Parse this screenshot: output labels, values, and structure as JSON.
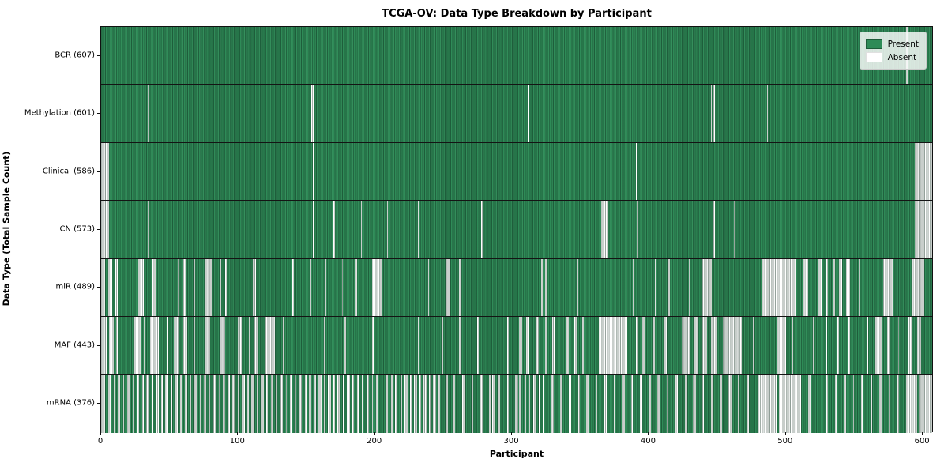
{
  "chart_data": {
    "type": "heatmap",
    "title": "TCGA-OV: Data Type Breakdown by Participant",
    "xlabel": "Participant",
    "ylabel": "Data Type (Total Sample Count)",
    "x_ticks": [
      0,
      100,
      200,
      300,
      400,
      500,
      600
    ],
    "n_participants": 608,
    "present_color": "#2e8b57",
    "absent_color": "#ffffff",
    "legend": {
      "present_label": "Present",
      "absent_label": "Absent"
    },
    "rows": [
      {
        "label": "BCR (607)",
        "data_type": "BCR",
        "count": 607,
        "absent_ranges": [
          [
            589,
            589
          ]
        ]
      },
      {
        "label": "Methylation (601)",
        "data_type": "Methylation",
        "count": 601,
        "absent_ranges": [
          [
            34,
            34
          ],
          [
            154,
            155
          ],
          [
            312,
            312
          ],
          [
            446,
            446
          ],
          [
            448,
            448
          ],
          [
            487,
            487
          ]
        ]
      },
      {
        "label": "Clinical (586)",
        "data_type": "Clinical",
        "count": 586,
        "absent_ranges": [
          [
            0,
            5
          ],
          [
            155,
            155
          ],
          [
            391,
            391
          ],
          [
            494,
            494
          ],
          [
            595,
            607
          ]
        ]
      },
      {
        "label": "CN (573)",
        "data_type": "CN",
        "count": 573,
        "absent_ranges": [
          [
            0,
            5
          ],
          [
            34,
            34
          ],
          [
            155,
            155
          ],
          [
            170,
            170
          ],
          [
            190,
            190
          ],
          [
            209,
            209
          ],
          [
            232,
            232
          ],
          [
            278,
            278
          ],
          [
            366,
            370
          ],
          [
            392,
            392
          ],
          [
            448,
            448
          ],
          [
            463,
            463
          ],
          [
            494,
            494
          ],
          [
            595,
            607
          ]
        ]
      },
      {
        "label": "miR (489)",
        "data_type": "miR",
        "count": 489,
        "absent_ranges": [
          [
            0,
            2
          ],
          [
            5,
            7
          ],
          [
            10,
            11
          ],
          [
            27,
            30
          ],
          [
            37,
            39
          ],
          [
            56,
            56
          ],
          [
            60,
            61
          ],
          [
            68,
            68
          ],
          [
            76,
            80
          ],
          [
            87,
            87
          ],
          [
            91,
            91
          ],
          [
            111,
            112
          ],
          [
            140,
            140
          ],
          [
            153,
            153
          ],
          [
            164,
            164
          ],
          [
            176,
            176
          ],
          [
            186,
            186
          ],
          [
            198,
            205
          ],
          [
            227,
            227
          ],
          [
            239,
            239
          ],
          [
            252,
            254
          ],
          [
            262,
            262
          ],
          [
            322,
            322
          ],
          [
            325,
            325
          ],
          [
            348,
            348
          ],
          [
            389,
            389
          ],
          [
            405,
            405
          ],
          [
            415,
            415
          ],
          [
            430,
            430
          ],
          [
            440,
            446
          ],
          [
            472,
            472
          ],
          [
            484,
            507
          ],
          [
            513,
            516
          ],
          [
            524,
            526
          ],
          [
            530,
            531
          ],
          [
            535,
            536
          ],
          [
            540,
            541
          ],
          [
            545,
            547
          ],
          [
            554,
            554
          ],
          [
            572,
            578
          ],
          [
            593,
            601
          ]
        ]
      },
      {
        "label": "MAF (443)",
        "data_type": "MAF",
        "count": 443,
        "absent_ranges": [
          [
            0,
            3
          ],
          [
            6,
            8
          ],
          [
            11,
            12
          ],
          [
            24,
            28
          ],
          [
            31,
            31
          ],
          [
            36,
            41
          ],
          [
            48,
            48
          ],
          [
            53,
            56
          ],
          [
            60,
            62
          ],
          [
            68,
            68
          ],
          [
            76,
            79
          ],
          [
            87,
            90
          ],
          [
            100,
            102
          ],
          [
            108,
            108
          ],
          [
            112,
            114
          ],
          [
            120,
            126
          ],
          [
            133,
            133
          ],
          [
            150,
            150
          ],
          [
            163,
            163
          ],
          [
            178,
            178
          ],
          [
            198,
            199
          ],
          [
            216,
            216
          ],
          [
            232,
            232
          ],
          [
            249,
            249
          ],
          [
            262,
            262
          ],
          [
            275,
            275
          ],
          [
            297,
            297
          ],
          [
            306,
            307
          ],
          [
            311,
            312
          ],
          [
            318,
            319
          ],
          [
            325,
            325
          ],
          [
            330,
            331
          ],
          [
            340,
            341
          ],
          [
            346,
            347
          ],
          [
            352,
            352
          ],
          [
            364,
            384
          ],
          [
            391,
            392
          ],
          [
            396,
            397
          ],
          [
            404,
            404
          ],
          [
            412,
            413
          ],
          [
            425,
            430
          ],
          [
            434,
            436
          ],
          [
            440,
            442
          ],
          [
            446,
            449
          ],
          [
            455,
            468
          ],
          [
            477,
            477
          ],
          [
            495,
            500
          ],
          [
            505,
            505
          ],
          [
            513,
            513
          ],
          [
            521,
            521
          ],
          [
            530,
            530
          ],
          [
            538,
            539
          ],
          [
            547,
            547
          ],
          [
            560,
            560
          ],
          [
            566,
            570
          ],
          [
            575,
            576
          ],
          [
            583,
            583
          ],
          [
            590,
            592
          ],
          [
            597,
            599
          ]
        ]
      },
      {
        "label": "mRNA (376)",
        "data_type": "mRNA",
        "count": 376,
        "absent_ranges": [
          [
            0,
            2
          ],
          [
            5,
            6
          ],
          [
            9,
            9
          ],
          [
            12,
            13
          ],
          [
            16,
            16
          ],
          [
            19,
            20
          ],
          [
            23,
            23
          ],
          [
            26,
            27
          ],
          [
            30,
            30
          ],
          [
            33,
            34
          ],
          [
            37,
            37
          ],
          [
            40,
            41
          ],
          [
            44,
            44
          ],
          [
            47,
            48
          ],
          [
            51,
            51
          ],
          [
            54,
            55
          ],
          [
            58,
            58
          ],
          [
            61,
            62
          ],
          [
            65,
            65
          ],
          [
            68,
            69
          ],
          [
            72,
            72
          ],
          [
            75,
            76
          ],
          [
            79,
            79
          ],
          [
            82,
            83
          ],
          [
            86,
            86
          ],
          [
            89,
            90
          ],
          [
            93,
            93
          ],
          [
            96,
            97
          ],
          [
            100,
            100
          ],
          [
            103,
            104
          ],
          [
            107,
            107
          ],
          [
            110,
            111
          ],
          [
            114,
            114
          ],
          [
            117,
            118
          ],
          [
            121,
            121
          ],
          [
            124,
            125
          ],
          [
            128,
            128
          ],
          [
            131,
            132
          ],
          [
            135,
            135
          ],
          [
            138,
            139
          ],
          [
            142,
            142
          ],
          [
            145,
            146
          ],
          [
            149,
            149
          ],
          [
            152,
            153
          ],
          [
            156,
            156
          ],
          [
            159,
            160
          ],
          [
            163,
            163
          ],
          [
            166,
            167
          ],
          [
            170,
            170
          ],
          [
            173,
            174
          ],
          [
            177,
            177
          ],
          [
            180,
            181
          ],
          [
            184,
            184
          ],
          [
            187,
            188
          ],
          [
            191,
            191
          ],
          [
            194,
            195
          ],
          [
            198,
            198
          ],
          [
            201,
            202
          ],
          [
            205,
            205
          ],
          [
            208,
            209
          ],
          [
            212,
            212
          ],
          [
            215,
            216
          ],
          [
            219,
            219
          ],
          [
            222,
            223
          ],
          [
            226,
            226
          ],
          [
            229,
            230
          ],
          [
            233,
            233
          ],
          [
            236,
            237
          ],
          [
            240,
            240
          ],
          [
            243,
            244
          ],
          [
            247,
            247
          ],
          [
            252,
            253
          ],
          [
            258,
            258
          ],
          [
            264,
            265
          ],
          [
            268,
            268
          ],
          [
            271,
            271
          ],
          [
            277,
            278
          ],
          [
            284,
            284
          ],
          [
            286,
            287
          ],
          [
            290,
            291
          ],
          [
            297,
            297
          ],
          [
            303,
            304
          ],
          [
            306,
            306
          ],
          [
            310,
            310
          ],
          [
            313,
            313
          ],
          [
            316,
            317
          ],
          [
            320,
            320
          ],
          [
            323,
            323
          ],
          [
            329,
            330
          ],
          [
            336,
            336
          ],
          [
            342,
            343
          ],
          [
            349,
            349
          ],
          [
            355,
            356
          ],
          [
            362,
            362
          ],
          [
            368,
            369
          ],
          [
            375,
            375
          ],
          [
            381,
            382
          ],
          [
            388,
            388
          ],
          [
            394,
            395
          ],
          [
            401,
            401
          ],
          [
            407,
            408
          ],
          [
            414,
            414
          ],
          [
            420,
            421
          ],
          [
            427,
            427
          ],
          [
            433,
            434
          ],
          [
            440,
            440
          ],
          [
            446,
            447
          ],
          [
            453,
            453
          ],
          [
            459,
            460
          ],
          [
            466,
            466
          ],
          [
            472,
            473
          ],
          [
            481,
            494
          ],
          [
            496,
            511
          ],
          [
            517,
            518
          ],
          [
            524,
            524
          ],
          [
            530,
            531
          ],
          [
            537,
            537
          ],
          [
            543,
            544
          ],
          [
            550,
            550
          ],
          [
            556,
            557
          ],
          [
            563,
            563
          ],
          [
            569,
            570
          ],
          [
            576,
            576
          ],
          [
            582,
            583
          ],
          [
            589,
            596
          ],
          [
            598,
            607
          ]
        ]
      }
    ]
  }
}
